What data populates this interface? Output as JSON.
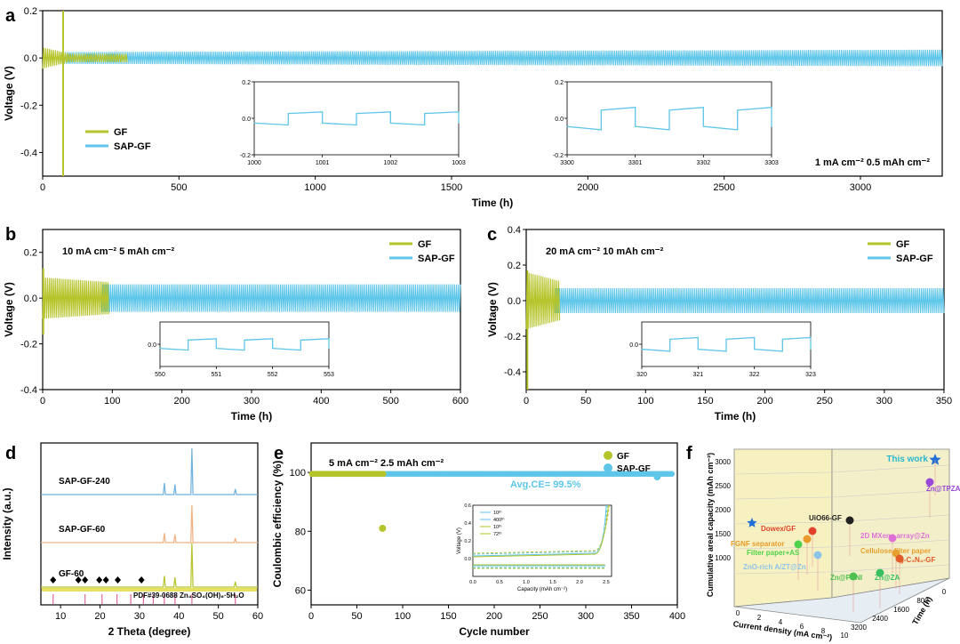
{
  "colors": {
    "gf": "#b5c42a",
    "sap": "#5ec6e8",
    "axis": "#000000",
    "star": "#1f6fd6"
  },
  "legend": {
    "gf": "GF",
    "sap": "SAP-GF"
  },
  "chart_data": [
    {
      "panel": "a",
      "type": "line",
      "xlabel": "Time (h)",
      "ylabel": "Voltage (V)",
      "xlim": [
        0,
        3300
      ],
      "ylim": [
        -0.5,
        0.2
      ],
      "xticks": [
        0,
        500,
        1000,
        1500,
        2000,
        2500,
        3000
      ],
      "yticks": [
        "-0.4",
        "-0.2",
        "0.0",
        "0.2"
      ],
      "condition": "1 mA cm⁻² 0.5 mAh cm⁻²",
      "series": [
        {
          "name": "GF",
          "end_x": 90,
          "amp_start": 0.03,
          "amp_end": 0.02,
          "spike": [
            0.2,
            -0.5
          ]
        },
        {
          "name": "SAP-GF",
          "end_x": 3300,
          "amp_start": 0.025,
          "amp_end": 0.035
        }
      ],
      "insets": [
        {
          "xlim": [
            1000,
            1003
          ],
          "ylim": [
            -0.2,
            0.2
          ],
          "xticks": [
            "1000",
            "1001",
            "1002",
            "1003"
          ],
          "yticks": [
            "-0.2",
            "0.0",
            "0.2"
          ],
          "amp": 0.035
        },
        {
          "xlim": [
            3300,
            3303
          ],
          "ylim": [
            -0.2,
            0.2
          ],
          "xticks": [
            "3300",
            "3301",
            "3302",
            "3303"
          ],
          "yticks": [
            "-0.2",
            "0.0",
            "0.2"
          ],
          "amp": 0.06
        }
      ]
    },
    {
      "panel": "b",
      "type": "line",
      "xlabel": "Time (h)",
      "ylabel": "Voltage (V)",
      "xlim": [
        0,
        600
      ],
      "ylim": [
        -0.4,
        0.3
      ],
      "xticks": [
        0,
        100,
        200,
        300,
        400,
        500,
        600
      ],
      "yticks": [
        "-0.4",
        "-0.2",
        "0.0",
        "0.2"
      ],
      "condition": "10 mA cm⁻² 5 mAh cm⁻²",
      "series": [
        {
          "name": "GF",
          "end_x": 95,
          "amp_start": 0.09,
          "amp_end": 0.07,
          "spike": [
            0.13,
            -0.16
          ]
        },
        {
          "name": "SAP-GF",
          "end_x": 600,
          "amp_start": 0.06,
          "amp_end": 0.06
        }
      ],
      "insets": [
        {
          "xlim": [
            550,
            553
          ],
          "ylim": [
            -0.2,
            0.2
          ],
          "xticks": [
            "550",
            "551",
            "552",
            "553"
          ],
          "yticks": [
            "0.0"
          ],
          "amp": 0.05
        }
      ]
    },
    {
      "panel": "c",
      "type": "line",
      "xlabel": "Time (h)",
      "ylabel": "Voltage (V)",
      "xlim": [
        0,
        350
      ],
      "ylim": [
        -0.5,
        0.4
      ],
      "xticks": [
        0,
        50,
        100,
        150,
        200,
        250,
        300,
        350
      ],
      "yticks": [
        "-0.4",
        "-0.2",
        "0.0",
        "0.2",
        "0.4"
      ],
      "condition": "20 mA cm⁻² 10 mAh cm⁻²",
      "series": [
        {
          "name": "GF",
          "end_x": 28,
          "amp_start": 0.16,
          "amp_end": 0.11,
          "spike": [
            0.17,
            -0.5
          ]
        },
        {
          "name": "SAP-GF",
          "end_x": 350,
          "amp_start": 0.07,
          "amp_end": 0.07
        }
      ],
      "insets": [
        {
          "xlim": [
            320,
            323
          ],
          "ylim": [
            -0.2,
            0.2
          ],
          "xticks": [
            "320",
            "321",
            "322",
            "323"
          ],
          "yticks": [
            "0.0"
          ],
          "amp": 0.06
        }
      ]
    },
    {
      "panel": "d",
      "type": "line",
      "xlabel": "2 Theta (degree)",
      "ylabel": "Intensity (a.u.)",
      "xlim": [
        5,
        60
      ],
      "xticks": [
        10,
        20,
        30,
        40,
        50,
        60
      ],
      "series": [
        {
          "name": "SAP-GF-240",
          "peaks": [
            [
              36.3,
              0.25
            ],
            [
              39.0,
              0.22
            ],
            [
              43.3,
              1.0
            ],
            [
              54.3,
              0.12
            ]
          ]
        },
        {
          "name": "SAP-GF-60",
          "peaks": [
            [
              36.3,
              0.25
            ],
            [
              39.0,
              0.22
            ],
            [
              43.3,
              1.0
            ],
            [
              54.3,
              0.12
            ]
          ]
        },
        {
          "name": "GF-60",
          "peaks": [
            [
              36.3,
              0.25
            ],
            [
              39.0,
              0.22
            ],
            [
              43.3,
              1.0
            ],
            [
              54.3,
              0.12
            ]
          ]
        }
      ],
      "reference": "PDF#39-0688 Zn₄SO₄(OH)₆·5H₂O",
      "ref_sticks": [
        8.1,
        16.2,
        20.5,
        24.3,
        27.8,
        31.0,
        33.5,
        36.3,
        39.0,
        43.3,
        54.3
      ],
      "diamond_x": [
        8.1,
        14.5,
        16.2,
        19.8,
        21.5,
        24.5,
        30.5
      ]
    },
    {
      "panel": "e",
      "type": "scatter",
      "xlabel": "Cycle number",
      "ylabel": "Coulombic efficiency (%)",
      "xlim": [
        0,
        400
      ],
      "ylim": [
        55,
        110
      ],
      "xticks": [
        0,
        50,
        100,
        150,
        200,
        250,
        300,
        350,
        400
      ],
      "yticks": [
        "60",
        "80",
        "100"
      ],
      "condition": "5 mA cm⁻² 2.5 mAh cm⁻²",
      "annotation": "Avg.CE= 99.5%",
      "series": [
        {
          "name": "GF",
          "x_end": 80,
          "y": 99.5,
          "outlier": [
            78,
            81
          ]
        },
        {
          "name": "SAP-GF",
          "x_end": 395,
          "y": 99.5
        }
      ],
      "inset": {
        "xlabel": "Capacity (mAh cm⁻²)",
        "ylabel": "Voltage (V)",
        "xlim": [
          0,
          2.6
        ],
        "ylim": [
          -0.2,
          0.6
        ],
        "xticks": [
          "0.0",
          "0.5",
          "1.0",
          "1.5",
          "2.0",
          "2.5"
        ],
        "yticks": [
          "0.0",
          "0.2",
          "0.4",
          "0.6"
        ],
        "legend": [
          "10ᵗʰ",
          "400ᵗʰ",
          "10ᵗʰ",
          "72ᵗʰ"
        ]
      }
    },
    {
      "panel": "f",
      "type": "scatter",
      "xlabel": "Current density (mA cm⁻²)",
      "ylabel": "Cumulative areal capacity (mAh cm⁻²)",
      "zlabel": "Time (h)",
      "yticks": [
        "1000",
        "1500",
        "2000",
        "2500",
        "3000"
      ],
      "xticks": [
        "0",
        "2",
        "4",
        "6",
        "8",
        "10"
      ],
      "zticks": [
        "0",
        "800",
        "1600",
        "2400",
        "3200"
      ],
      "points": [
        {
          "label": "This work",
          "color": "#2bb7d0"
        },
        {
          "label": "Zn@TPZA",
          "color": "#9a48d8"
        },
        {
          "label": "UiO66-GF",
          "color": "#222222"
        },
        {
          "label": "2D MXene array@Zn",
          "color": "#e070d8"
        },
        {
          "label": "Dowex/GF",
          "color": "#e0432a"
        },
        {
          "label": "Cellulose filter paper",
          "color": "#e6a030"
        },
        {
          "label": "FGNF separator",
          "color": "#e89a2a"
        },
        {
          "label": "g-C₃N₄-GF",
          "color": "#e05a2a"
        },
        {
          "label": "Filter paper+AS",
          "color": "#4fd24a"
        },
        {
          "label": "Zn@ZA",
          "color": "#3ac060"
        },
        {
          "label": "Zn@PANI",
          "color": "#50c050"
        },
        {
          "label": "ZnO-rich A/ZT@Zn",
          "color": "#8fc4e8"
        }
      ]
    }
  ]
}
